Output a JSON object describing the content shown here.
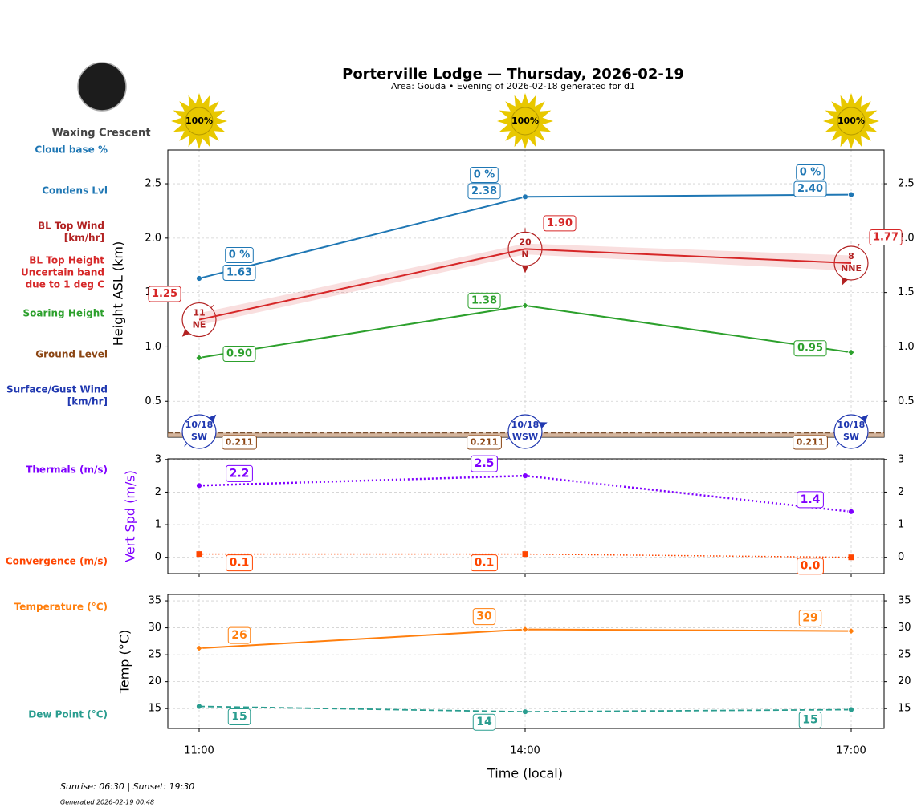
{
  "header": {
    "title": "Porterville Lodge — Thursday, 2026-02-19",
    "subtitle": "Area: Gouda • Evening of 2026-02-18 generated for d1",
    "moon_phase": "Waxing Crescent",
    "sunrise_sunset": "Sunrise: 06:30 | Sunset: 19:30",
    "generated": "Generated 2026-02-19 00:48"
  },
  "chart_data": [
    {
      "type": "line",
      "ylabel": "Height ASL (km)",
      "ylim": [
        0.17,
        2.81
      ],
      "yticks": [
        0.5,
        {
          "value": 1,
          "label": "1.0"
        },
        1.5,
        {
          "value": 2,
          "label": "2.0"
        },
        2.5
      ],
      "grid": true,
      "sun": {
        "values": [
          100,
          100,
          100
        ],
        "value_labels": [
          "100%",
          "100%",
          "100%"
        ],
        "color": "#e8c800"
      },
      "series": [
        {
          "name": [
            "Cloud base %"
          ],
          "kind": "label",
          "color": "#1f77b4",
          "values": [
            0,
            0,
            0
          ],
          "value_labels": [
            "0 %",
            "0 %",
            "0 %"
          ]
        },
        {
          "name": [
            "Condens Lvl"
          ],
          "kind": "line",
          "line_style": "solid",
          "marker": "circle",
          "color": "#1f77b4",
          "values": [
            1.63,
            2.38,
            2.4
          ],
          "value_labels": [
            "1.63",
            "2.38",
            "2.40"
          ]
        },
        {
          "name": [
            "BL Top Wind",
            "[km/hr]"
          ],
          "kind": "wind",
          "color": "#b22222",
          "values": [
            11,
            20,
            8
          ],
          "directions": [
            "NE",
            "N",
            "NNE"
          ]
        },
        {
          "name": [
            "BL Top Height",
            "Uncertain band",
            "due to 1 deg C"
          ],
          "kind": "line",
          "line_style": "solid",
          "marker": "none",
          "color": "#d62728",
          "values": [
            1.25,
            1.9,
            1.77
          ],
          "value_labels": [
            "1.25",
            "1.90",
            "1.77"
          ],
          "band_low": [
            1.2,
            1.85,
            1.7
          ],
          "band_high": [
            1.31,
            1.95,
            1.84
          ]
        },
        {
          "name": [
            "Soaring Height"
          ],
          "kind": "line",
          "line_style": "solid",
          "marker": "diamond",
          "color": "#2ca02c",
          "values": [
            0.9,
            1.38,
            0.95
          ],
          "value_labels": [
            "0.90",
            "1.38",
            "0.95"
          ]
        },
        {
          "name": [
            "Ground Level"
          ],
          "kind": "ground",
          "color": "#8b4513",
          "values": [
            0.211,
            0.211,
            0.211
          ],
          "value_labels": [
            "0.211",
            "0.211",
            "0.211"
          ]
        },
        {
          "name": [
            "Surface/Gust Wind",
            "[km/hr]"
          ],
          "kind": "wind",
          "color": "#2038b0",
          "values": [
            10,
            10,
            10
          ],
          "gusts": [
            18,
            18,
            18
          ],
          "value_labels": [
            "10/18",
            "10/18",
            "10/18"
          ],
          "directions": [
            "SW",
            "WSW",
            "SW"
          ]
        }
      ]
    },
    {
      "type": "line",
      "ylabel": "Vert Spd (m/s)",
      "ylabel_color": "#7f00ff",
      "ylim": [
        -0.5,
        3.02
      ],
      "yticks": [
        0,
        1,
        2,
        3
      ],
      "grid": true,
      "series": [
        {
          "name": [
            "Thermals (m/s)"
          ],
          "kind": "line",
          "line_style": "dotted",
          "marker": "circle",
          "color": "#7f00ff",
          "values": [
            2.2,
            2.5,
            1.4
          ],
          "value_labels": [
            "2.2",
            "2.5",
            "1.4"
          ]
        },
        {
          "name": [
            "Convergence (m/s)"
          ],
          "kind": "line",
          "line_style": "dotted-thin",
          "marker": "square",
          "color": "#ff4500",
          "values": [
            0.1,
            0.1,
            0.0
          ],
          "value_labels": [
            "0.1",
            "0.1",
            "0.0"
          ]
        }
      ]
    },
    {
      "type": "line",
      "ylabel": "Temp (°C)",
      "xlabel": "Time (local)",
      "categories": [
        "11:00",
        "14:00",
        "17:00"
      ],
      "ylim": [
        11.3,
        36.2
      ],
      "yticks": [
        15,
        20,
        25,
        30,
        35
      ],
      "grid": true,
      "series": [
        {
          "name": [
            "Temperature (°C)"
          ],
          "kind": "line",
          "line_style": "solid",
          "marker": "diamond",
          "color": "#ff7f0e",
          "values": [
            26.2,
            29.7,
            29.4
          ],
          "value_labels": [
            "26",
            "30",
            "29"
          ]
        },
        {
          "name": [
            "Dew Point (°C)"
          ],
          "kind": "line",
          "line_style": "dashed",
          "marker": "circle",
          "color": "#2a9d8f",
          "values": [
            15.4,
            14.4,
            14.8
          ],
          "value_labels": [
            "15",
            "14",
            "15"
          ]
        }
      ]
    }
  ]
}
